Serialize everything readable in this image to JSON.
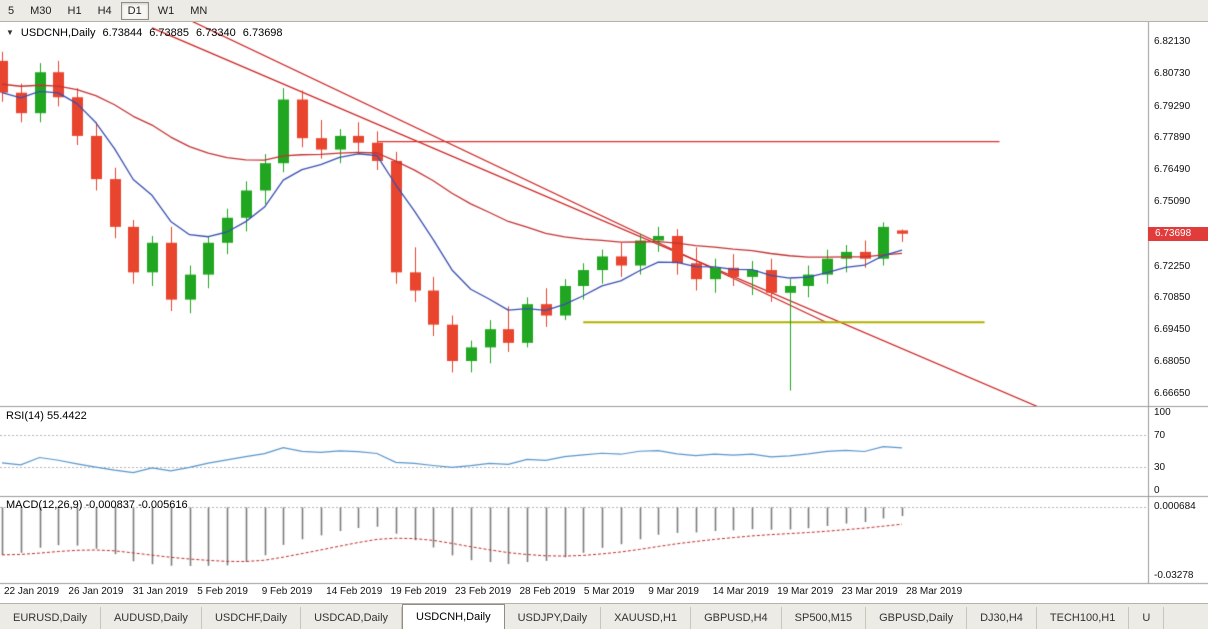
{
  "toolbar": {
    "timeframes": [
      {
        "label": "5",
        "active": false
      },
      {
        "label": "M30",
        "active": false
      },
      {
        "label": "H1",
        "active": false
      },
      {
        "label": "H4",
        "active": false
      },
      {
        "label": "D1",
        "active": true
      },
      {
        "label": "W1",
        "active": false
      },
      {
        "label": "MN",
        "active": false
      }
    ]
  },
  "chart": {
    "symbol_label": "USDCNH,Daily",
    "open": "6.73844",
    "high": "6.73885",
    "low": "6.73340",
    "close": "6.73698",
    "current_price": "6.73698"
  },
  "chart_data": {
    "type": "candlestick",
    "title": "USDCNH,Daily",
    "x_labels": [
      "22 Jan 2019",
      "26 Jan 2019",
      "31 Jan 2019",
      "5 Feb 2019",
      "9 Feb 2019",
      "14 Feb 2019",
      "19 Feb 2019",
      "23 Feb 2019",
      "28 Feb 2019",
      "5 Mar 2019",
      "9 Mar 2019",
      "14 Mar 2019",
      "19 Mar 2019",
      "23 Mar 2019",
      "28 Mar 2019"
    ],
    "y_axis_labels": [
      "6.82130",
      "6.80730",
      "6.79290",
      "6.77890",
      "6.76490",
      "6.75090",
      "6.73690",
      "6.72250",
      "6.70850",
      "6.69450",
      "6.68050",
      "6.66650"
    ],
    "candles": [
      [
        6.813,
        6.817,
        6.795,
        6.799
      ],
      [
        6.799,
        6.803,
        6.786,
        6.79
      ],
      [
        6.79,
        6.812,
        6.786,
        6.808
      ],
      [
        6.808,
        6.813,
        6.793,
        6.797
      ],
      [
        6.797,
        6.801,
        6.776,
        6.78
      ],
      [
        6.78,
        6.786,
        6.756,
        6.761
      ],
      [
        6.761,
        6.766,
        6.735,
        6.74
      ],
      [
        6.74,
        6.743,
        6.715,
        6.72
      ],
      [
        6.72,
        6.736,
        6.714,
        6.733
      ],
      [
        6.733,
        6.74,
        6.703,
        6.708
      ],
      [
        6.708,
        6.723,
        6.702,
        6.719
      ],
      [
        6.719,
        6.736,
        6.713,
        6.733
      ],
      [
        6.733,
        6.748,
        6.728,
        6.744
      ],
      [
        6.744,
        6.76,
        6.738,
        6.756
      ],
      [
        6.756,
        6.772,
        6.75,
        6.768
      ],
      [
        6.768,
        6.801,
        6.764,
        6.796
      ],
      [
        6.796,
        6.8,
        6.775,
        6.779
      ],
      [
        6.779,
        6.787,
        6.77,
        6.774
      ],
      [
        6.774,
        6.783,
        6.768,
        6.78
      ],
      [
        6.78,
        6.786,
        6.773,
        6.777
      ],
      [
        6.777,
        6.782,
        6.765,
        6.769
      ],
      [
        6.769,
        6.773,
        6.715,
        6.72
      ],
      [
        6.72,
        6.731,
        6.707,
        6.712
      ],
      [
        6.712,
        6.718,
        6.692,
        6.697
      ],
      [
        6.697,
        6.701,
        6.676,
        6.681
      ],
      [
        6.681,
        6.69,
        6.676,
        6.687
      ],
      [
        6.687,
        6.699,
        6.68,
        6.695
      ],
      [
        6.695,
        6.705,
        6.685,
        6.689
      ],
      [
        6.689,
        6.709,
        6.687,
        6.706
      ],
      [
        6.706,
        6.713,
        6.696,
        6.701
      ],
      [
        6.701,
        6.717,
        6.699,
        6.714
      ],
      [
        6.714,
        6.724,
        6.708,
        6.721
      ],
      [
        6.721,
        6.73,
        6.715,
        6.727
      ],
      [
        6.727,
        6.733,
        6.718,
        6.723
      ],
      [
        6.723,
        6.737,
        6.719,
        6.734
      ],
      [
        6.734,
        6.74,
        6.729,
        6.736
      ],
      [
        6.736,
        6.739,
        6.719,
        6.724
      ],
      [
        6.724,
        6.731,
        6.712,
        6.717
      ],
      [
        6.717,
        6.726,
        6.711,
        6.722
      ],
      [
        6.722,
        6.728,
        6.714,
        6.718
      ],
      [
        6.718,
        6.725,
        6.71,
        6.721
      ],
      [
        6.721,
        6.726,
        6.707,
        6.711
      ],
      [
        6.711,
        6.717,
        6.668,
        6.714
      ],
      [
        6.714,
        6.723,
        6.709,
        6.719
      ],
      [
        6.719,
        6.73,
        6.715,
        6.726
      ],
      [
        6.726,
        6.732,
        6.72,
        6.729
      ],
      [
        6.729,
        6.734,
        6.722,
        6.726
      ],
      [
        6.726,
        6.742,
        6.723,
        6.74
      ],
      [
        6.73844,
        6.73885,
        6.7334,
        6.73698
      ]
    ],
    "overlays": {
      "ma_fast_color": "#3a50b0",
      "ma_slow_color": "#c43434"
    },
    "lines": {
      "trendline_color": "#cc2222",
      "trendlines": [
        {
          "from_index": 8,
          "from_price": 6.8275,
          "to_index": 55.5,
          "to_price": 6.66
        },
        {
          "from_index": -1,
          "from_price": 6.874,
          "to_index": 44,
          "to_price": 6.6978
        }
      ],
      "resistance": {
        "price": 6.7775,
        "from_index": 20,
        "to_index": 53.2,
        "color": "#e03030"
      },
      "support": {
        "price": 6.698,
        "from_index": 31,
        "to_index": 52.4,
        "color": "#b0b000"
      }
    },
    "indicators": {
      "rsi": {
        "display": "RSI(14) 55.4422",
        "period": 14,
        "value": 55.4422,
        "axis_labels": [
          "100",
          "70",
          "30",
          "0"
        ],
        "levels": [
          70,
          30
        ],
        "color": "#5a96cc"
      },
      "macd": {
        "display": "MACD(12,26,9) -0.000837 -0.005616",
        "macd_value": -0.000837,
        "signal_value": -0.005616,
        "axis_labels": [
          "0.000684",
          "-0.03278"
        ],
        "histogram_color": "#7d7d7d",
        "signal_color": "#c03030"
      }
    },
    "colors": {
      "bull": "#21a621",
      "bear": "#e8442e",
      "badge": "#e03c3c"
    }
  },
  "tabbar": {
    "tabs": [
      {
        "label": "EURUSD,Daily",
        "active": false
      },
      {
        "label": "AUDUSD,Daily",
        "active": false
      },
      {
        "label": "USDCHF,Daily",
        "active": false
      },
      {
        "label": "USDCAD,Daily",
        "active": false
      },
      {
        "label": "USDCNH,Daily",
        "active": true
      },
      {
        "label": "USDJPY,Daily",
        "active": false
      },
      {
        "label": "XAUUSD,H1",
        "active": false
      },
      {
        "label": "GBPUSD,H4",
        "active": false
      },
      {
        "label": "SP500,M15",
        "active": false
      },
      {
        "label": "GBPUSD,Daily",
        "active": false
      },
      {
        "label": "DJ30,H4",
        "active": false
      },
      {
        "label": "TECH100,H1",
        "active": false
      },
      {
        "label": "U",
        "active": false
      }
    ]
  }
}
